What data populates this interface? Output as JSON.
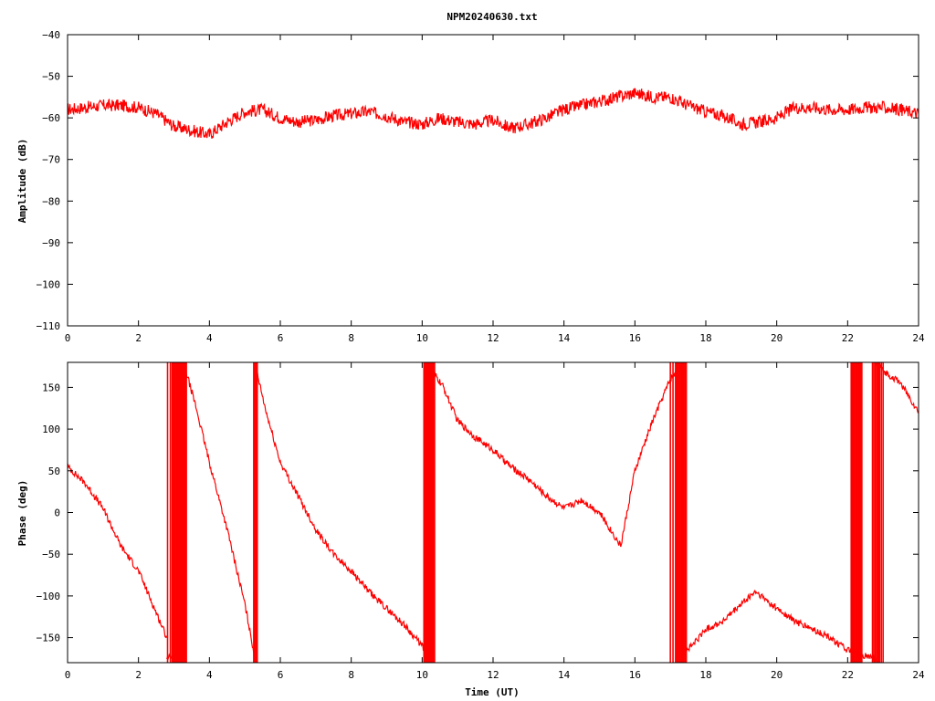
{
  "title": "NPM20240630.txt",
  "colors": {
    "series": "#ff0000",
    "axis": "#000000",
    "background": "#ffffff"
  },
  "chart_data": [
    {
      "type": "line",
      "name": "amplitude",
      "xlabel": "",
      "ylabel": "Amplitude (dB)",
      "xlim": [
        0,
        24
      ],
      "ylim": [
        -110,
        -40
      ],
      "xticks": [
        "0",
        "2",
        "4",
        "6",
        "8",
        "10",
        "12",
        "14",
        "16",
        "18",
        "20",
        "22",
        "24"
      ],
      "yticks": [
        "−40",
        "−50",
        "−60",
        "−70",
        "−80",
        "−90",
        "−100",
        "−110"
      ],
      "grid": false,
      "noise_band": 1.5,
      "series": [
        {
          "color": "#ff0000",
          "x": [
            0,
            0.5,
            1,
            1.5,
            2,
            2.5,
            3,
            3.5,
            4,
            4.5,
            5,
            5.5,
            6,
            6.5,
            7,
            7.5,
            8,
            8.5,
            9,
            9.5,
            10,
            10.5,
            11,
            11.5,
            12,
            12.5,
            13,
            13.5,
            14,
            14.5,
            15,
            15.5,
            16,
            16.5,
            17,
            17.5,
            18,
            18.5,
            19,
            19.5,
            20,
            20.5,
            21,
            21.5,
            22,
            22.5,
            23,
            23.5,
            24
          ],
          "y": [
            -58,
            -57.5,
            -57,
            -57,
            -57.5,
            -59,
            -62,
            -63,
            -64,
            -61,
            -58.5,
            -58,
            -60,
            -61,
            -60.5,
            -59.5,
            -59,
            -58.5,
            -59.5,
            -61,
            -61.5,
            -60,
            -61,
            -61.5,
            -60.5,
            -62.5,
            -61.5,
            -60,
            -58,
            -57,
            -56,
            -55,
            -54,
            -55,
            -55,
            -57,
            -58.5,
            -59.5,
            -61.5,
            -61,
            -60,
            -57.5,
            -57.5,
            -58,
            -58,
            -57.5,
            -57.5,
            -58,
            -59
          ]
        }
      ]
    },
    {
      "type": "line",
      "name": "phase",
      "xlabel": "Time (UT)",
      "ylabel": "Phase (deg)",
      "xlim": [
        0,
        24
      ],
      "ylim": [
        -180,
        180
      ],
      "xticks": [
        "0",
        "2",
        "4",
        "6",
        "8",
        "10",
        "12",
        "14",
        "16",
        "18",
        "20",
        "22",
        "24"
      ],
      "yticks": [
        "150",
        "100",
        "50",
        "0",
        "−50",
        "−100",
        "−150"
      ],
      "grid": false,
      "noise_band": 4,
      "series": [
        {
          "color": "#ff0000",
          "x": [
            0,
            0.5,
            1,
            1.5,
            2,
            2.5,
            2.8
          ],
          "y": [
            55,
            35,
            5,
            -40,
            -70,
            -120,
            -150
          ]
        },
        {
          "color": "#ff0000",
          "x": [
            2.8,
            3.0,
            3.3
          ],
          "y": [
            -175,
            -170,
            -178
          ]
        },
        {
          "color": "#ff0000",
          "x": [
            3.3,
            3.6,
            4,
            4.5,
            5,
            5.3
          ],
          "y": [
            175,
            130,
            60,
            -20,
            -110,
            -178
          ]
        },
        {
          "color": "#ff0000",
          "x": [
            5.3,
            5.6,
            6,
            6.5,
            7,
            7.5,
            8,
            8.5,
            9,
            9.5,
            10,
            10.2
          ],
          "y": [
            175,
            120,
            60,
            20,
            -20,
            -50,
            -70,
            -95,
            -115,
            -135,
            -160,
            -175
          ]
        },
        {
          "color": "#ff0000",
          "x": [
            10.2,
            10.6,
            11,
            11.5,
            12,
            12.5,
            13,
            13.5,
            14,
            14.5,
            15,
            15.6,
            16,
            16.5,
            17,
            17.4
          ],
          "y": [
            175,
            150,
            110,
            90,
            75,
            55,
            40,
            20,
            5,
            15,
            0,
            -40,
            50,
            110,
            160,
            178
          ]
        },
        {
          "color": "#ff0000",
          "x": [
            17.3,
            17.6,
            18,
            18.5,
            19,
            19.4,
            20,
            20.5,
            21,
            21.5,
            22,
            22.3,
            22.8
          ],
          "y": [
            -170,
            -160,
            -140,
            -130,
            -110,
            -95,
            -115,
            -130,
            -140,
            -150,
            -165,
            -170,
            -175
          ]
        },
        {
          "color": "#ff0000",
          "x": [
            22.8,
            23,
            23.5,
            24
          ],
          "y": [
            178,
            170,
            155,
            120
          ]
        }
      ],
      "wrap_bands": [
        {
          "x0": 2.82,
          "x1": 2.9,
          "count": 2
        },
        {
          "x0": 2.95,
          "x1": 3.35,
          "count": 14
        },
        {
          "x0": 5.25,
          "x1": 5.35,
          "count": 4
        },
        {
          "x0": 10.05,
          "x1": 10.35,
          "count": 14
        },
        {
          "x0": 17.0,
          "x1": 17.15,
          "count": 3
        },
        {
          "x0": 17.15,
          "x1": 17.45,
          "count": 10
        },
        {
          "x0": 22.1,
          "x1": 22.4,
          "count": 10
        },
        {
          "x0": 22.7,
          "x1": 22.9,
          "count": 6
        },
        {
          "x0": 22.95,
          "x1": 23.0,
          "count": 2
        }
      ]
    }
  ]
}
